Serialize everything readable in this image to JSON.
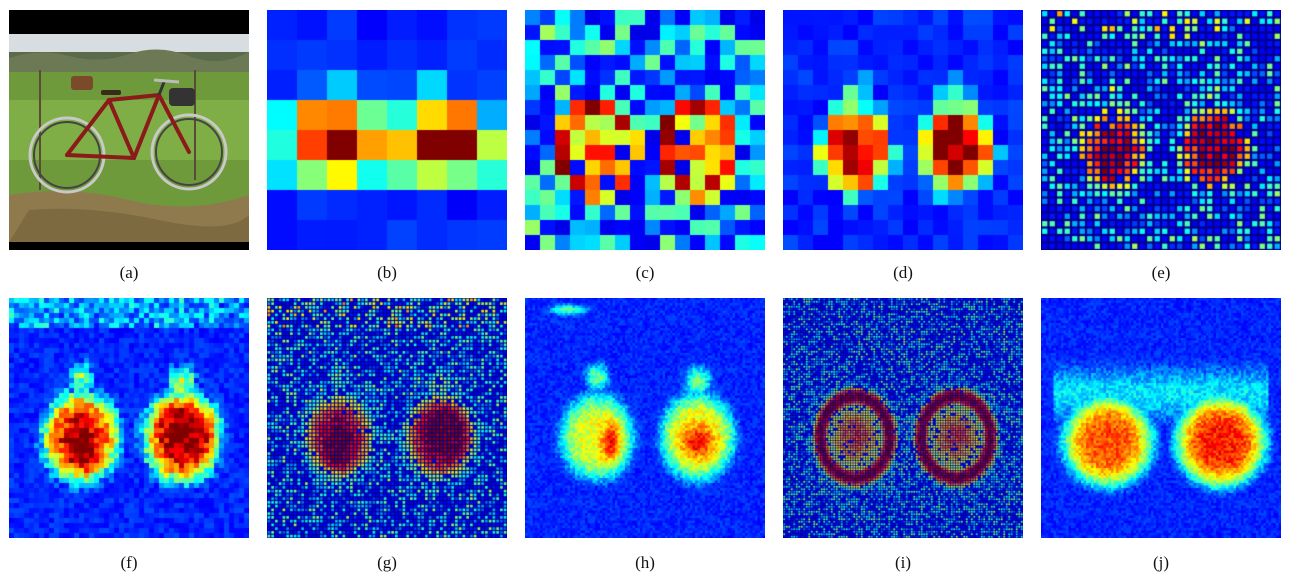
{
  "figure": {
    "panels": [
      {
        "id": "a",
        "caption": "(a)",
        "kind": "photo",
        "subject": "bicycle-in-field"
      },
      {
        "id": "b",
        "caption": "(b)",
        "kind": "heatmap",
        "grid": 8,
        "blobSize": "large",
        "sparse": false,
        "edgeNoise": false
      },
      {
        "id": "c",
        "caption": "(c)",
        "kind": "heatmap",
        "grid": 16,
        "blobSize": "ring",
        "sparse": true,
        "edgeNoise": false
      },
      {
        "id": "d",
        "caption": "(d)",
        "kind": "heatmap",
        "grid": 16,
        "blobSize": "wheels",
        "sparse": false,
        "edgeNoise": false
      },
      {
        "id": "e",
        "caption": "(e)",
        "kind": "heatmap",
        "grid": 32,
        "blobSize": "wheels-ring",
        "sparse": true,
        "edgeNoise": true
      },
      {
        "id": "f",
        "caption": "(f)",
        "kind": "heatmap",
        "grid": 48,
        "blobSize": "wheels",
        "sparse": false,
        "edgeNoise": true
      },
      {
        "id": "g",
        "caption": "(g)",
        "kind": "heatmap",
        "grid": 64,
        "blobSize": "wheels-ring",
        "sparse": true,
        "edgeNoise": true
      },
      {
        "id": "h",
        "caption": "(h)",
        "kind": "heatmap",
        "grid": 96,
        "blobSize": "smooth",
        "sparse": false,
        "edgeNoise": false
      },
      {
        "id": "i",
        "caption": "(i)",
        "kind": "heatmap",
        "grid": 96,
        "blobSize": "outline",
        "sparse": true,
        "edgeNoise": false
      },
      {
        "id": "j",
        "caption": "(j)",
        "kind": "heatmap",
        "grid": 96,
        "blobSize": "wide",
        "sparse": false,
        "edgeNoise": false
      }
    ],
    "colormap": "jet",
    "colors": {
      "background": "#00008b",
      "hot": "#8b0000"
    }
  }
}
